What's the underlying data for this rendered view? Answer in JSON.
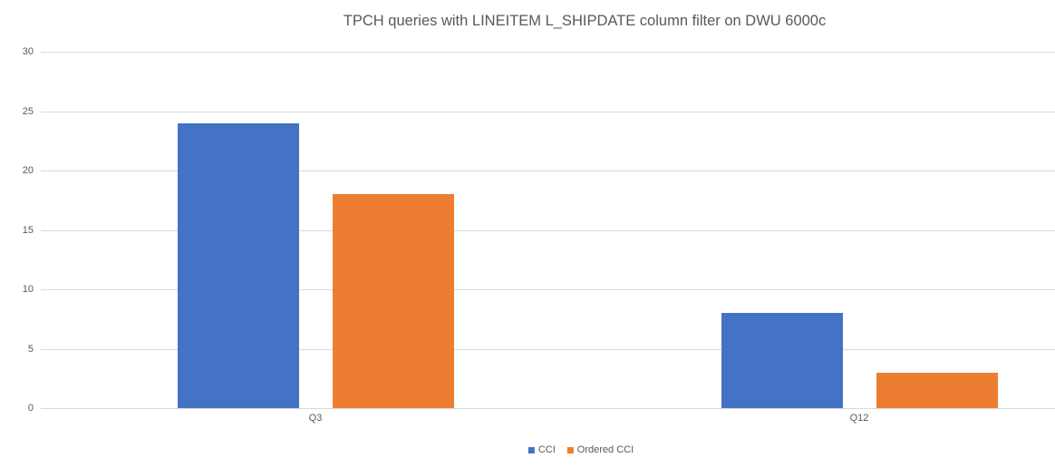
{
  "chart_data": {
    "type": "bar",
    "title": "TPCH queries with LINEITEM L_SHIPDATE column filter on DWU 6000c",
    "categories": [
      "Q3",
      "Q12"
    ],
    "series": [
      {
        "name": "CCI",
        "color": "#4472C4",
        "values": [
          24,
          8
        ]
      },
      {
        "name": "Ordered CCI",
        "color": "#ED7D31",
        "values": [
          18,
          3
        ]
      }
    ],
    "xlabel": "",
    "ylabel": "",
    "ylim": [
      0,
      30
    ],
    "yticks": [
      0,
      5,
      10,
      15,
      20,
      25,
      30
    ],
    "grid": true,
    "legend_position": "bottom-center"
  },
  "colors": {
    "gridline": "#d9d9d9",
    "text": "#595959",
    "background": "#ffffff"
  }
}
